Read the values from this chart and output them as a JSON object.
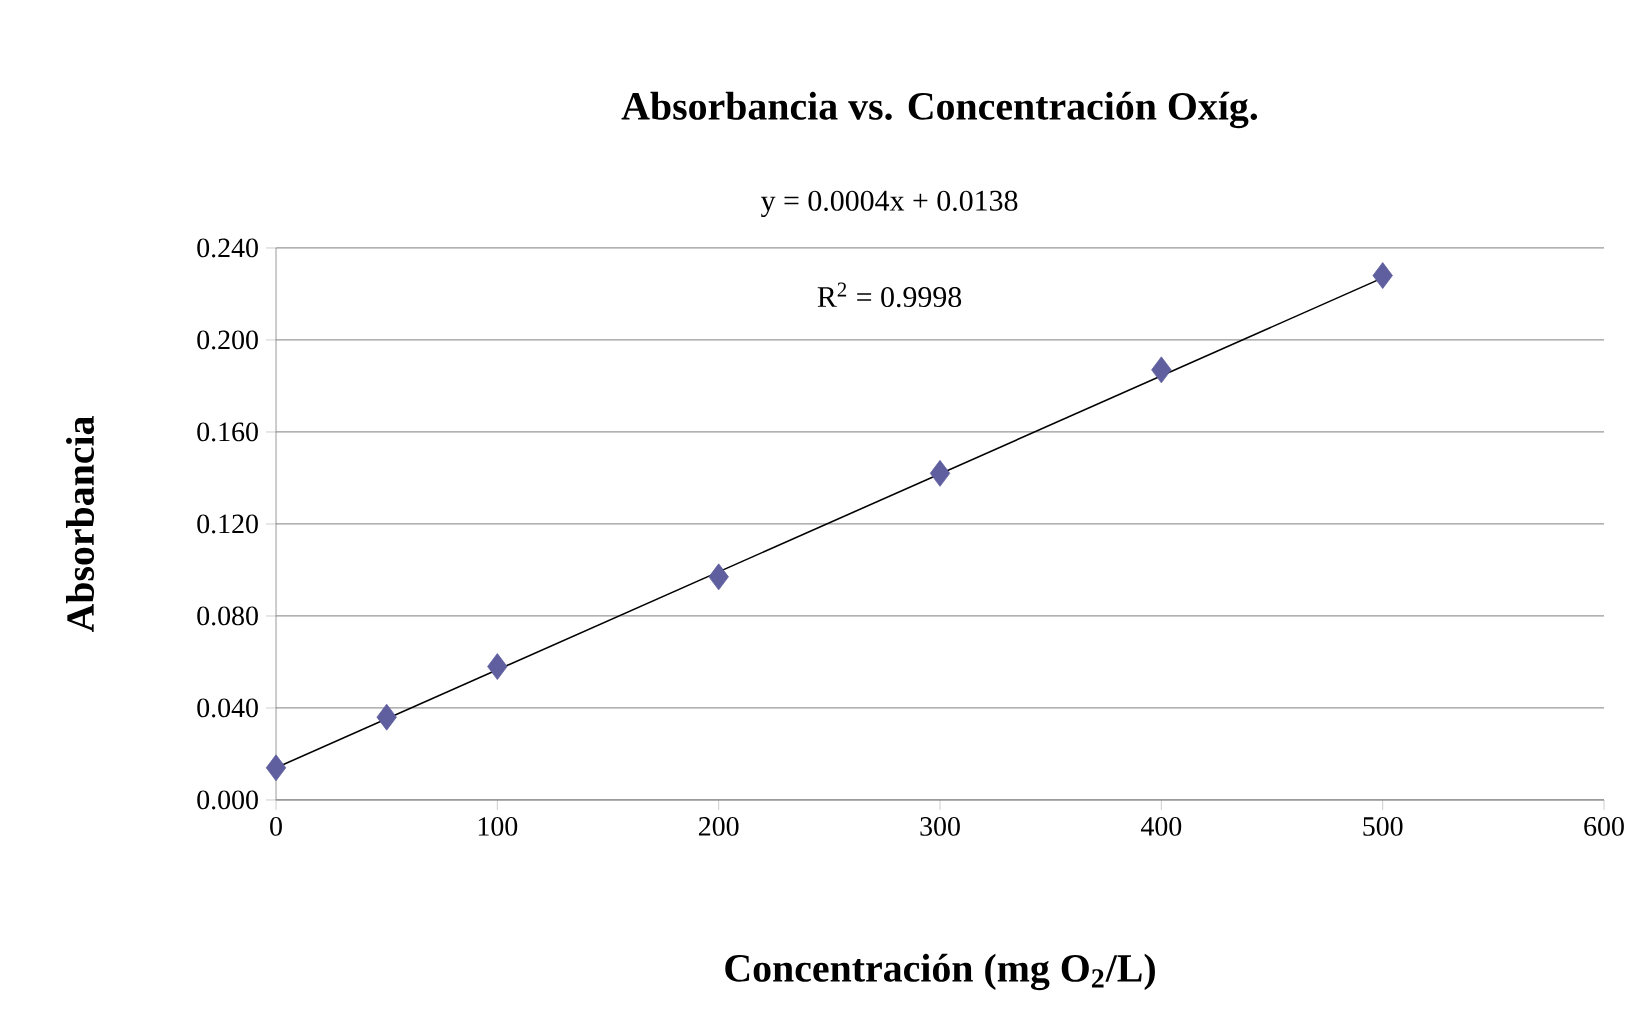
{
  "chart_data": {
    "type": "scatter",
    "title": "Absorbancia vs. Concentración Oxíg.",
    "xlabel": "Concentración (mg O$_{2}$/L)",
    "ylabel": "Absorbancia",
    "annotations": [
      "y = 0.0004x + 0.0138",
      "R$^{2}$ = 0.9998"
    ],
    "x": [
      0,
      50,
      100,
      200,
      300,
      400,
      500
    ],
    "series": [
      {
        "color": "#5f5f9f",
        "values": [
          0.014,
          0.036,
          0.058,
          0.097,
          0.142,
          0.187,
          0.228
        ]
      },
      {
        "type": "line",
        "color": "#000000",
        "x": [
          0,
          500
        ],
        "values": [
          0.014,
          0.227
        ],
        "marker": "none"
      }
    ],
    "xlim": [
      0,
      600
    ],
    "xticks": [
      0,
      100,
      200,
      300,
      400,
      500,
      600
    ],
    "ylim": [
      0,
      0.24
    ],
    "yticks": [
      {
        "value": 0,
        "label": "0.000"
      },
      {
        "value": 0.04,
        "label": "0.040"
      },
      {
        "value": 0.08,
        "label": "0.080"
      },
      {
        "value": 0.12,
        "label": "0.120"
      },
      {
        "value": 0.16,
        "label": "0.160"
      },
      {
        "value": 0.2,
        "label": "0.200"
      },
      {
        "value": 0.24,
        "label": "0.240"
      }
    ],
    "grid": "y",
    "marker": "diamond"
  }
}
